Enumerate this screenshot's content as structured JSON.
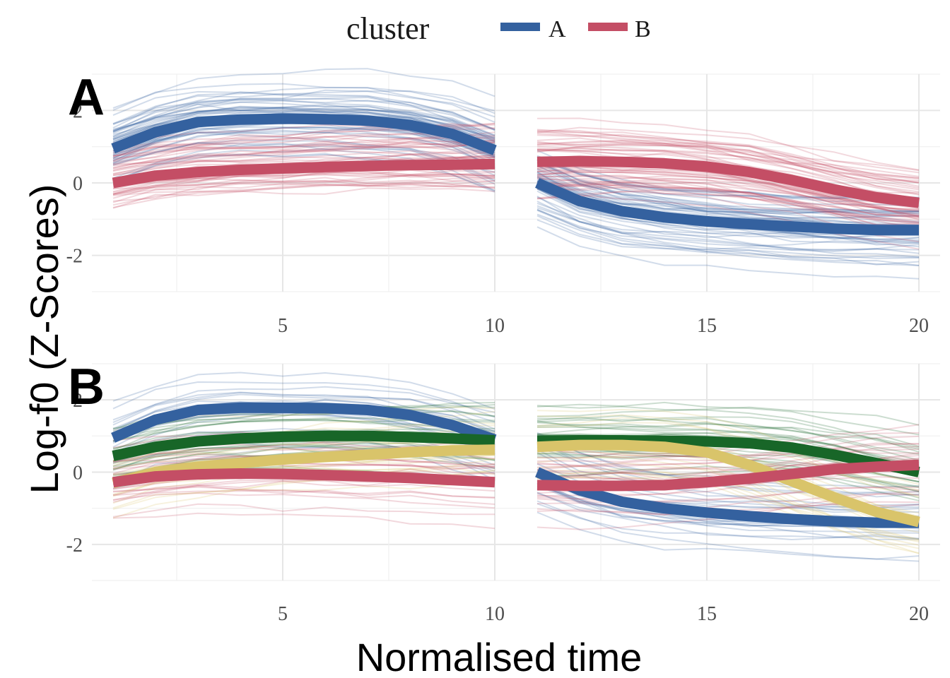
{
  "legend": {
    "title": "cluster",
    "items": [
      {
        "label": "A",
        "color": "#34619f"
      },
      {
        "label": "B",
        "color": "#c44e65"
      }
    ]
  },
  "chart_data": [
    {
      "type": "line",
      "panel_label": "A",
      "xlabel": "Normalised time",
      "ylabel": "Log-f0 (Z-Scores)",
      "xlim": [
        0.5,
        20.5
      ],
      "ylim": [
        -3,
        3
      ],
      "xticks": [
        5,
        10,
        15,
        20
      ],
      "yticks": [
        -2,
        0,
        2
      ],
      "grid": true,
      "segments": [
        [
          1,
          10
        ],
        [
          11,
          20
        ]
      ],
      "series": [
        {
          "name": "A",
          "color": "#34619f",
          "x": [
            1,
            2,
            3,
            4,
            5,
            6,
            7,
            8,
            9,
            10,
            11,
            12,
            13,
            14,
            15,
            16,
            17,
            18,
            19,
            20
          ],
          "y": [
            0.95,
            1.4,
            1.68,
            1.75,
            1.77,
            1.76,
            1.72,
            1.6,
            1.35,
            0.9,
            0.0,
            -0.5,
            -0.78,
            -0.95,
            -1.06,
            -1.14,
            -1.2,
            -1.26,
            -1.3,
            -1.3
          ]
        },
        {
          "name": "B",
          "color": "#c44e65",
          "x": [
            1,
            2,
            3,
            4,
            5,
            6,
            7,
            8,
            9,
            10,
            11,
            12,
            13,
            14,
            15,
            16,
            17,
            18,
            19,
            20
          ],
          "y": [
            0.0,
            0.2,
            0.3,
            0.36,
            0.4,
            0.44,
            0.47,
            0.49,
            0.5,
            0.52,
            0.58,
            0.6,
            0.58,
            0.54,
            0.45,
            0.3,
            0.08,
            -0.18,
            -0.4,
            -0.55
          ]
        }
      ]
    },
    {
      "type": "line",
      "panel_label": "B",
      "xlabel": "Normalised time",
      "ylabel": "Log-f0 (Z-Scores)",
      "xlim": [
        0.5,
        20.5
      ],
      "ylim": [
        -3,
        3
      ],
      "xticks": [
        5,
        10,
        15,
        20
      ],
      "yticks": [
        -2,
        0,
        2
      ],
      "grid": true,
      "segments": [
        [
          1,
          10
        ],
        [
          11,
          20
        ]
      ],
      "series": [
        {
          "name": "A",
          "color": "#34619f",
          "x": [
            1,
            2,
            3,
            4,
            5,
            6,
            7,
            8,
            9,
            10,
            11,
            12,
            13,
            14,
            15,
            16,
            17,
            18,
            19,
            20
          ],
          "y": [
            0.95,
            1.45,
            1.72,
            1.78,
            1.78,
            1.77,
            1.72,
            1.58,
            1.3,
            0.9,
            0.0,
            -0.5,
            -0.82,
            -1.0,
            -1.12,
            -1.22,
            -1.3,
            -1.36,
            -1.4,
            -1.4
          ]
        },
        {
          "name": "",
          "color": "#186628",
          "x": [
            1,
            2,
            3,
            4,
            5,
            6,
            7,
            8,
            9,
            10,
            11,
            12,
            13,
            14,
            15,
            16,
            17,
            18,
            19,
            20
          ],
          "y": [
            0.45,
            0.7,
            0.85,
            0.93,
            0.98,
            1.0,
            1.0,
            0.97,
            0.93,
            0.88,
            0.87,
            0.88,
            0.88,
            0.87,
            0.85,
            0.8,
            0.68,
            0.48,
            0.25,
            0.0
          ]
        },
        {
          "name": "",
          "color": "#d9c46a",
          "x": [
            1,
            2,
            3,
            4,
            5,
            6,
            7,
            8,
            9,
            10,
            11,
            12,
            13,
            14,
            15,
            16,
            17,
            18,
            19,
            20
          ],
          "y": [
            -0.3,
            0.0,
            0.15,
            0.25,
            0.35,
            0.42,
            0.48,
            0.55,
            0.6,
            0.62,
            0.7,
            0.75,
            0.75,
            0.7,
            0.55,
            0.2,
            -0.25,
            -0.7,
            -1.1,
            -1.38
          ]
        },
        {
          "name": "B",
          "color": "#c44e65",
          "x": [
            1,
            2,
            3,
            4,
            5,
            6,
            7,
            8,
            9,
            10,
            11,
            12,
            13,
            14,
            15,
            16,
            17,
            18,
            19,
            20
          ],
          "y": [
            -0.28,
            -0.12,
            -0.06,
            -0.04,
            -0.05,
            -0.08,
            -0.12,
            -0.16,
            -0.22,
            -0.28,
            -0.36,
            -0.38,
            -0.38,
            -0.36,
            -0.28,
            -0.18,
            -0.05,
            0.08,
            0.15,
            0.2
          ]
        }
      ]
    }
  ]
}
